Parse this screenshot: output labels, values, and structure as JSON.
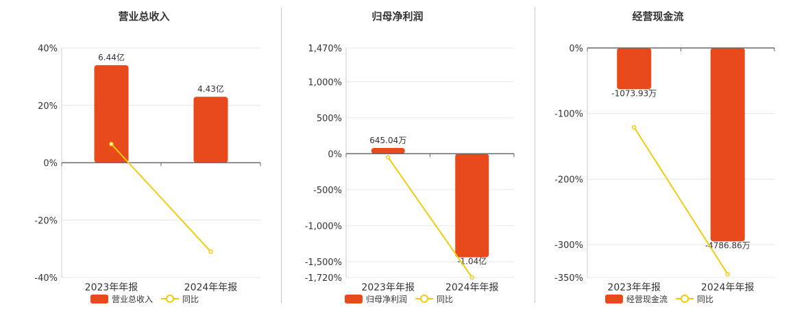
{
  "chart_data": [
    {
      "type": "bar",
      "title": "营业总收入",
      "categories": [
        "2023年年报",
        "2024年年报"
      ],
      "series": [
        {
          "name": "营业总收入",
          "type": "bar",
          "values": [
            34,
            23
          ],
          "labels": [
            "6.44亿",
            "4.43亿"
          ]
        },
        {
          "name": "同比",
          "type": "line",
          "values": [
            6.5,
            -31
          ]
        }
      ],
      "yticks": [
        40,
        20,
        0,
        -20,
        -40
      ],
      "ytick_labels": [
        "40%",
        "20%",
        "0%",
        "-20%",
        "-40%"
      ],
      "ylim": [
        -40,
        40
      ],
      "grid": true,
      "legend_position": "bottom"
    },
    {
      "type": "bar",
      "title": "归母净利润",
      "categories": [
        "2023年年报",
        "2024年年报"
      ],
      "series": [
        {
          "name": "归母净利润",
          "type": "bar",
          "values": [
            80,
            -1440
          ],
          "labels": [
            "645.04万",
            "-1.04亿"
          ]
        },
        {
          "name": "同比",
          "type": "line",
          "values": [
            -50,
            -1720
          ]
        }
      ],
      "yticks": [
        1470,
        1000,
        500,
        0,
        -500,
        -1000,
        -1500,
        -1720
      ],
      "ytick_labels": [
        "1,470%",
        "1,000%",
        "500%",
        "0%",
        "-500%",
        "-1,000%",
        "-1,500%",
        "-1,720%"
      ],
      "ylim": [
        -1720,
        1470
      ],
      "grid": true,
      "legend_position": "bottom"
    },
    {
      "type": "bar",
      "title": "经营现金流",
      "categories": [
        "2023年年报",
        "2024年年报"
      ],
      "series": [
        {
          "name": "经营现金流",
          "type": "bar",
          "values": [
            -63,
            -295
          ],
          "labels": [
            "-1073.93万",
            "-4786.86万"
          ]
        },
        {
          "name": "同比",
          "type": "line",
          "values": [
            -121,
            -345
          ]
        }
      ],
      "yticks": [
        0,
        -100,
        -200,
        -300,
        -350
      ],
      "ytick_labels": [
        "0%",
        "-100%",
        "-200%",
        "-300%",
        "-350%"
      ],
      "ylim": [
        -350,
        0
      ],
      "grid": true,
      "legend_position": "bottom"
    }
  ],
  "colors": {
    "bar": "#e84a1b",
    "line": "#f2cc0c"
  }
}
